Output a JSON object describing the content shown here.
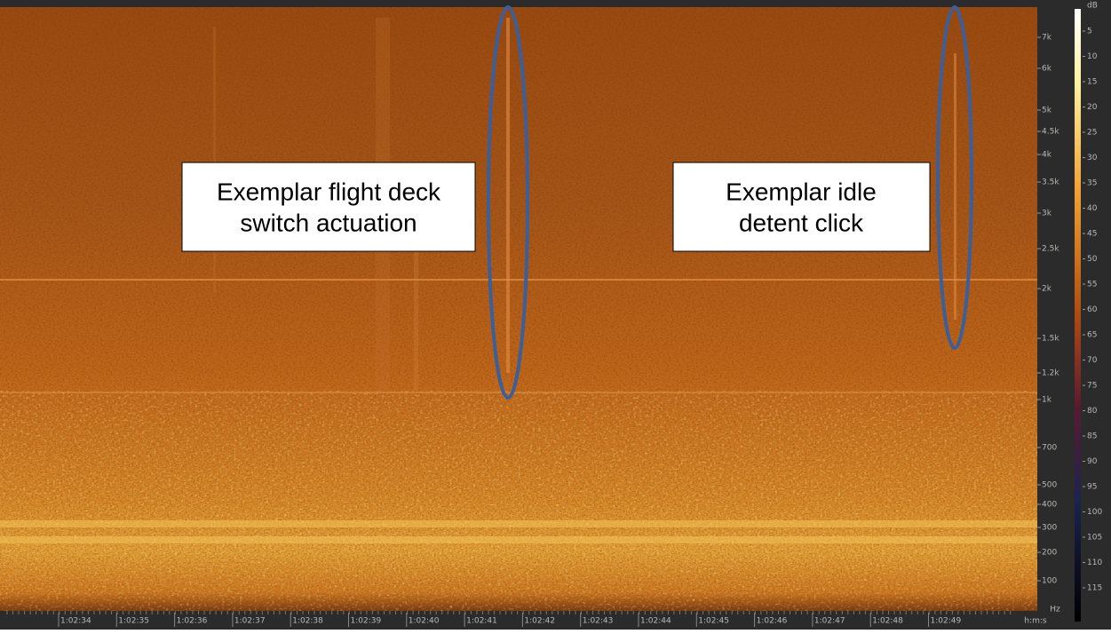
{
  "annotations": [
    {
      "lines": [
        "Exemplar flight deck",
        "switch actuation"
      ]
    },
    {
      "lines": [
        "Exemplar idle",
        "detent click"
      ]
    }
  ],
  "time_ruler": {
    "labels": [
      "1:02:34",
      "1:02:35",
      "1:02:36",
      "1:02:37",
      "1:02:38",
      "1:02:39",
      "1:02:40",
      "1:02:41",
      "1:02:42",
      "1:02:43",
      "1:02:44",
      "1:02:45",
      "1:02:46",
      "1:02:47",
      "1:02:48",
      "1:02:49"
    ],
    "unit": "h:m:s"
  },
  "frequency_ruler": {
    "labels": [
      "7k",
      "6k",
      "5k",
      "4.5k",
      "4k",
      "3.5k",
      "3k",
      "2.5k",
      "2k",
      "1.5k",
      "1.2k",
      "1k",
      "700",
      "500",
      "400",
      "300",
      "200",
      "100"
    ],
    "unit": "Hz"
  },
  "db_scale": {
    "unit": "dB",
    "labels": [
      5,
      10,
      15,
      20,
      25,
      30,
      35,
      40,
      45,
      50,
      55,
      60,
      65,
      70,
      75,
      80,
      85,
      90,
      95,
      100,
      105,
      110,
      115
    ]
  }
}
